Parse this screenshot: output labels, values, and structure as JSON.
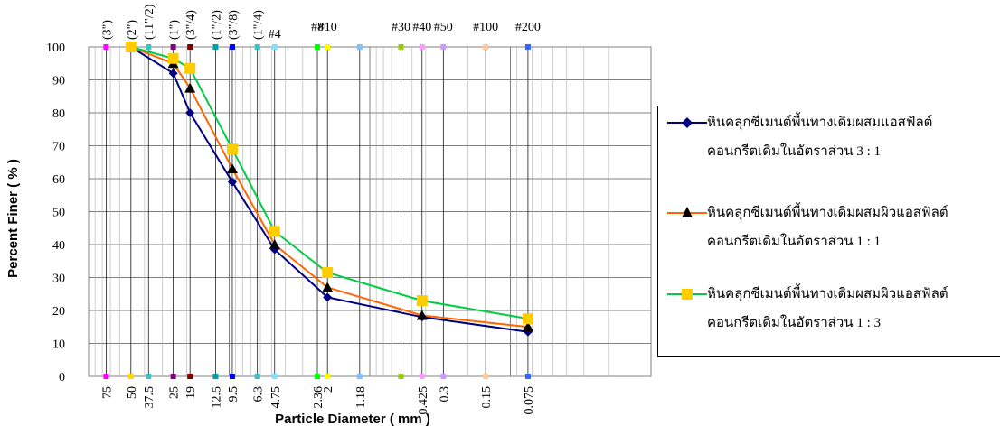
{
  "chart_data": {
    "type": "line",
    "xlabel": "Particle Diameter ( mm )",
    "ylabel": "Percent  Finer ( % )",
    "ylim": [
      0,
      100
    ],
    "y_ticks": [
      "0",
      "10",
      "20",
      "30",
      "40",
      "50",
      "60",
      "70",
      "80",
      "90",
      "100"
    ],
    "x_scale": "log (reversed)",
    "sieves": [
      {
        "size": 75,
        "size_label": "75",
        "name": "(3\")",
        "color": "#ff00ff"
      },
      {
        "size": 50,
        "size_label": "50",
        "name": "(2\")",
        "color": "#ffd700"
      },
      {
        "size": 37.5,
        "size_label": "37.5",
        "name": "(11\"/2)",
        "color": "#40c0c0"
      },
      {
        "size": 25,
        "size_label": "25",
        "name": "(1\")",
        "color": "#800080"
      },
      {
        "size": 19,
        "size_label": "19",
        "name": "(3\"/4)",
        "color": "#800000"
      },
      {
        "size": 12.5,
        "size_label": "12.5",
        "name": "(1\"/2)",
        "color": "#00a0a0"
      },
      {
        "size": 9.5,
        "size_label": "9.5",
        "name": "(3\"/8)",
        "color": "#0000ff"
      },
      {
        "size": 6.3,
        "size_label": "6.3",
        "name": "(1\"/4)",
        "color": "#40c0c0"
      },
      {
        "size": 4.75,
        "size_label": "4.75",
        "name": "#4",
        "color": "#80e0ff"
      },
      {
        "size": 2.36,
        "size_label": "2.36",
        "name": "#8",
        "color": "#00ff00"
      },
      {
        "size": 2,
        "size_label": "2",
        "name": "#10",
        "color": "#ffff00"
      },
      {
        "size": 1.18,
        "size_label": "1.18",
        "name": "",
        "color": "#80c0ff"
      },
      {
        "size": 0.6,
        "size_label": "",
        "name": "#30",
        "color": "#99cc00"
      },
      {
        "size": 0.425,
        "size_label": "0.425",
        "name": "#40",
        "color": "#ff99ff"
      },
      {
        "size": 0.3,
        "size_label": "0.3",
        "name": "#50",
        "color": "#cc99ff"
      },
      {
        "size": 0.15,
        "size_label": "0.15",
        "name": "#100",
        "color": "#ffcc99"
      },
      {
        "size": 0.075,
        "size_label": "0.075",
        "name": "#200",
        "color": "#3366ff"
      }
    ],
    "series": [
      {
        "name_line1": "หินคลุกซีเมนต์พื้นทางเดิมผสมแอสฟัลต์",
        "name_line2": "คอนกรีตเดิมในอัตราส่วน 3 : 1",
        "color": "#000080",
        "marker": "diamond",
        "x": [
          50,
          25,
          19,
          9.5,
          4.75,
          2,
          0.425,
          0.075
        ],
        "y": [
          100,
          92,
          80,
          59,
          38.5,
          24,
          18,
          13.5
        ]
      },
      {
        "name_line1": "หินคลุกซีเมนต์พื้นทางเดิมผสมผิวแอสฟัลต์",
        "name_line2": "คอนกรีตเดิมในอัตราส่วน 1  : 1",
        "color": "#ff6600",
        "marker": "triangle",
        "x": [
          50,
          25,
          19,
          9.5,
          4.75,
          2,
          0.425,
          0.075
        ],
        "y": [
          100,
          95,
          87.5,
          63,
          40,
          27,
          18.5,
          15
        ]
      },
      {
        "name_line1": "หินคลุกซีเมนต์พื้นทางเดิมผสมผิวแอสฟัลต์",
        "name_line2": "คอนกรีตเดิมในอัตราส่วน 1 : 3",
        "color": "#00cc44",
        "marker": "square",
        "x": [
          50,
          25,
          19,
          9.5,
          4.75,
          2,
          0.425,
          0.075
        ],
        "y": [
          100,
          96.5,
          93.5,
          69,
          44,
          31.5,
          23,
          17.5
        ]
      }
    ],
    "legend_position": "right"
  }
}
